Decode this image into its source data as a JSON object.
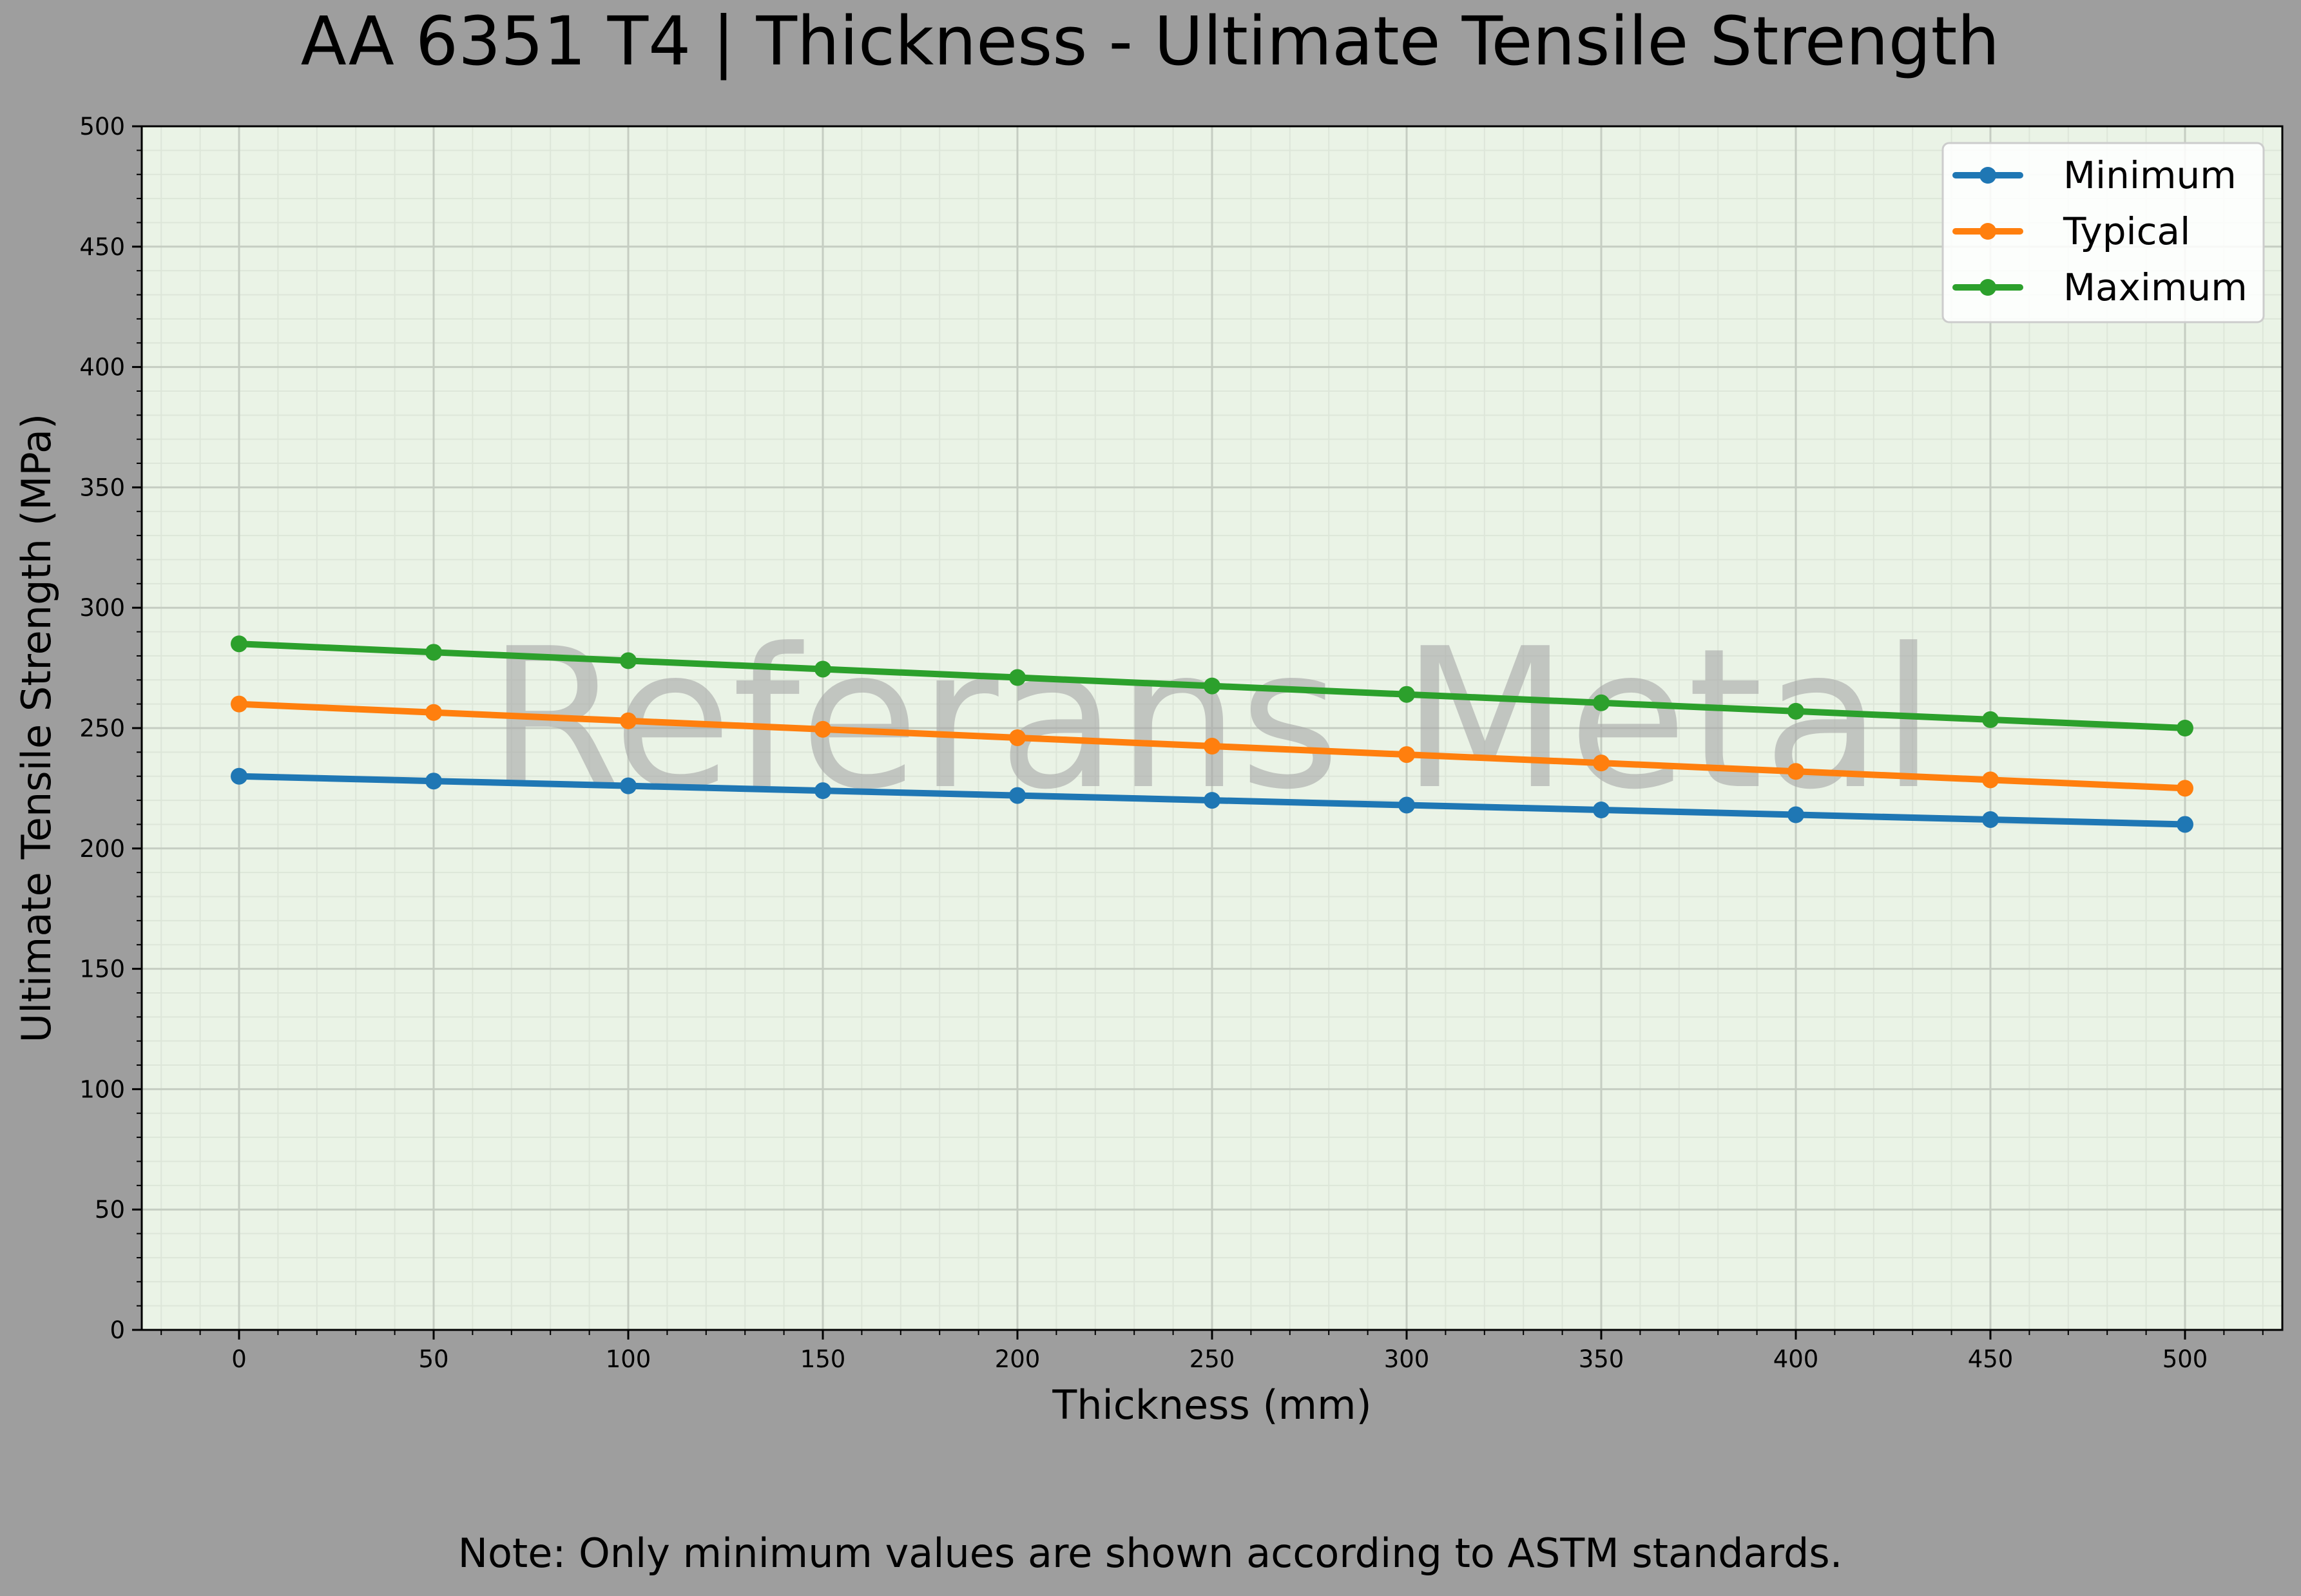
{
  "chart_data": {
    "type": "line",
    "title": "AA 6351 T4 | Thickness - Ultimate Tensile Strength",
    "xlabel": "Thickness (mm)",
    "ylabel": "Ultimate Tensile Strength (MPa)",
    "note": "Note: Only minimum values are shown according to ASTM standards.",
    "watermark": "Referans Metal",
    "x": [
      0,
      50,
      100,
      150,
      200,
      250,
      300,
      350,
      400,
      450,
      500
    ],
    "x_ticks": [
      "0",
      "50",
      "100",
      "150",
      "200",
      "250",
      "300",
      "350",
      "400",
      "450",
      "500"
    ],
    "y_ticks": [
      "0",
      "50",
      "100",
      "150",
      "200",
      "250",
      "300",
      "350",
      "400",
      "450",
      "500"
    ],
    "xlim": [
      -25,
      525
    ],
    "ylim": [
      0,
      500
    ],
    "grid": true,
    "legend_position": "top-right",
    "series": [
      {
        "name": "Minimum",
        "color": "#1f77b4",
        "values": [
          230,
          228,
          226,
          224,
          222,
          220,
          218,
          216,
          214,
          212,
          210
        ]
      },
      {
        "name": "Typical",
        "color": "#ff7f0e",
        "values": [
          260,
          256.5,
          253,
          249.5,
          246,
          242.5,
          239,
          235.5,
          232,
          228.5,
          225
        ]
      },
      {
        "name": "Maximum",
        "color": "#2ca02c",
        "values": [
          285,
          281.5,
          278,
          274.5,
          271,
          267.5,
          264,
          260.5,
          257,
          253.5,
          250
        ]
      }
    ]
  },
  "colors": {
    "page_background": "#9e9e9e",
    "plot_background": "#eaf3e6",
    "grid_major": "#c5cdc2",
    "grid_minor": "#dde6d9",
    "watermark": "#a8a8a8"
  }
}
